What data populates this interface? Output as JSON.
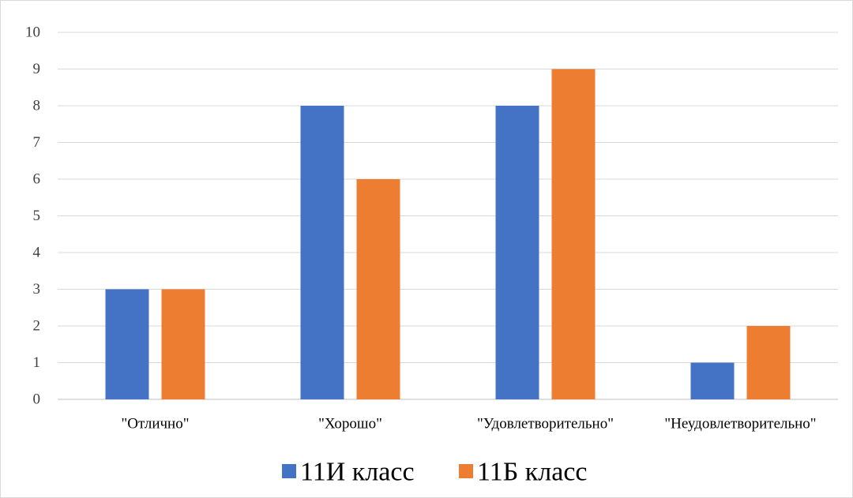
{
  "chart_data": {
    "type": "bar",
    "categories": [
      "\"Отлично\"",
      "\"Хорошо\"",
      "\"Удовлетворительно\"",
      "\"Неудовлетворительно\""
    ],
    "series": [
      {
        "name": "11И класс",
        "values": [
          3,
          8,
          8,
          1
        ],
        "color": "#4472C4"
      },
      {
        "name": "11Б класс",
        "values": [
          3,
          6,
          9,
          2
        ],
        "color": "#ED7D31"
      }
    ],
    "title": "",
    "xlabel": "",
    "ylabel": "",
    "ylim": [
      0,
      10
    ],
    "yticks": [
      "0",
      "1",
      "2",
      "3",
      "4",
      "5",
      "6",
      "7",
      "8",
      "9",
      "10"
    ],
    "grid": true,
    "gridline_color": "#d9d9d9",
    "legend_position": "bottom"
  }
}
